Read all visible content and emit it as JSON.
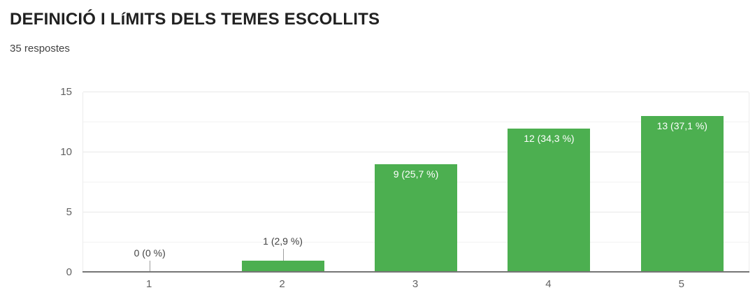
{
  "header": {
    "title": "DEFINICIÓ I LíMITS DELS TEMES ESCOLLITS",
    "subtitle": "35 respostes"
  },
  "colors": {
    "bar": "#4caf50",
    "axis_line": "#757575",
    "gridline_major": "#e8e8e8",
    "gridline_minor": "#f2f2f2",
    "tick_label": "#616161",
    "label_dark": "#424242",
    "label_light": "#ffffff",
    "leader_line": "#9e9e9e",
    "title_color": "#212121"
  },
  "chart_data": {
    "type": "bar",
    "title": "DEFINICIÓ I LíMITS DELS TEMES ESCOLLITS",
    "subtitle": "35 respostes",
    "categories": [
      "1",
      "2",
      "3",
      "4",
      "5"
    ],
    "values": [
      0,
      1,
      9,
      12,
      13
    ],
    "bar_labels": [
      "0 (0 %)",
      "1 (2,9 %)",
      "9 (25,7 %)",
      "12 (34,3 %)",
      "13 (37,1 %)"
    ],
    "label_positions": [
      "above",
      "above",
      "inside",
      "inside",
      "inside"
    ],
    "percentages": [
      0,
      2.9,
      25.7,
      34.3,
      37.1
    ],
    "total_responses": 35,
    "xlabel": "",
    "ylabel": "",
    "ylim": [
      0,
      15
    ],
    "yticks": [
      0,
      5,
      10,
      15
    ],
    "minor_gridline_step": 2.5,
    "grid": true,
    "legend": "none",
    "bar_color": "#4caf50"
  }
}
